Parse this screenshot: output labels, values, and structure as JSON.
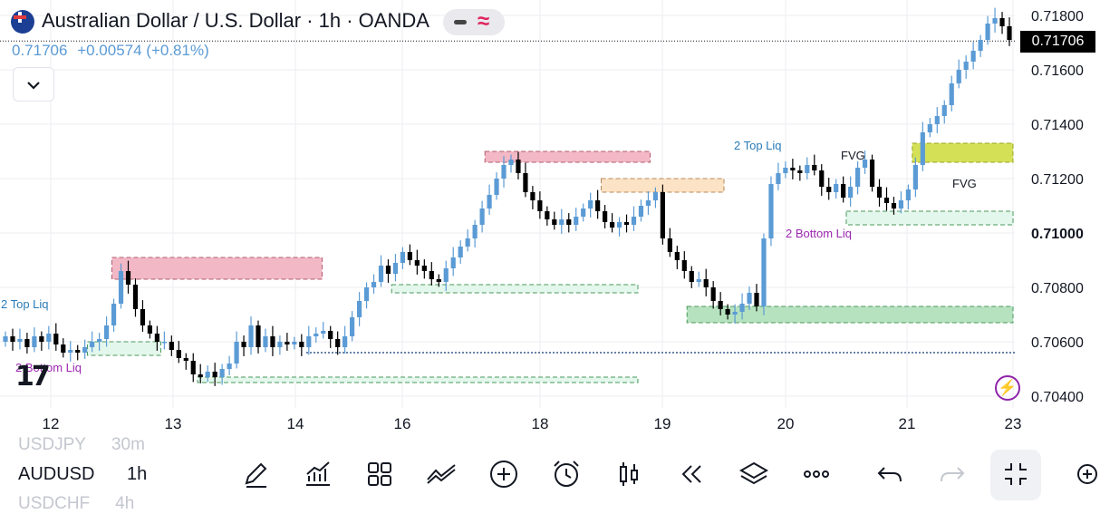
{
  "header": {
    "title": "Australian Dollar / U.S. Dollar · 1h · OANDA",
    "last_price": "0.71706",
    "change": "+0.00574 (+0.81%)"
  },
  "symbols": {
    "above": {
      "name": "USDJPY",
      "tf": "30m"
    },
    "current": {
      "name": "AUDUSD",
      "tf": "1h"
    },
    "below": {
      "name": "USDCHF",
      "tf": "4h"
    }
  },
  "colors": {
    "up": "#5b9bd5",
    "down": "#000000",
    "red_zone": "#f2b8c6",
    "orange_zone": "#fde3c5",
    "green_zone": "#b6e2bf",
    "light_green_zone": "#e4f7ec",
    "lime_zone": "#d4e157",
    "liq_label_blue": "#2b7cb8",
    "liq_label_purple": "#9c27b0"
  },
  "toolbar_icons": [
    "pencil-icon",
    "indicators-icon",
    "layouts-icon",
    "drawings-icon",
    "add-icon",
    "alarm-icon",
    "candles-icon",
    "replay-icon",
    "layers-icon",
    "more-icon",
    "undo-icon",
    "redo-icon",
    "collapse-icon",
    "compare-icon"
  ],
  "chart_data": {
    "type": "candlestick",
    "symbol": "AUDUSD",
    "interval": "1h",
    "ylim": [
      0.7035,
      0.7185
    ],
    "y_ticks": [
      "0.71800",
      "0.71600",
      "0.71400",
      "0.71200",
      "0.71000",
      "0.70800",
      "0.70600",
      "0.70400"
    ],
    "x_ticks": [
      "12",
      "13",
      "14",
      "16",
      "18",
      "19",
      "20",
      "21",
      "23"
    ],
    "last_value": 0.71706,
    "annotations": {
      "top_liq_left": "2 Top Liq",
      "bottom_liq_left": "2 Bottom Liq",
      "top_liq_mid": "2 Top Liq",
      "bottom_liq_right": "2 Bottom Liq",
      "fvg_1": "FVG",
      "fvg_2": "FVG"
    },
    "zones": [
      {
        "kind": "red",
        "from": "12.5",
        "to": "14.5",
        "low": 0.7083,
        "high": 0.7091
      },
      {
        "kind": "red",
        "from": "17.2",
        "to": "18.9",
        "low": 0.7126,
        "high": 0.713
      },
      {
        "kind": "orange",
        "from": "18.5",
        "to": "19.5",
        "low": 0.7115,
        "high": 0.712
      },
      {
        "kind": "green",
        "from": "19.2",
        "to": "23",
        "low": 0.7067,
        "high": 0.7073
      },
      {
        "kind": "lime",
        "from": "21.1",
        "to": "23",
        "low": 0.7126,
        "high": 0.7133
      },
      {
        "kind": "light_green",
        "from": "20.5",
        "to": "23",
        "low": 0.7103,
        "high": 0.7108
      },
      {
        "kind": "light_green",
        "from": "12.3",
        "to": "12.9",
        "low": 0.7055,
        "high": 0.706
      },
      {
        "kind": "light_green",
        "from": "13.2",
        "to": "18.8",
        "low": 0.7045,
        "high": 0.7047
      },
      {
        "kind": "light_green",
        "from": "15.8",
        "to": "18.8",
        "low": 0.7078,
        "high": 0.7081
      }
    ],
    "close_path": [
      0.7062,
      0.706,
      0.7061,
      0.7058,
      0.7062,
      0.706,
      0.7063,
      0.7059,
      0.7056,
      0.7057,
      0.7056,
      0.7058,
      0.706,
      0.7061,
      0.7066,
      0.7074,
      0.7086,
      0.7081,
      0.7072,
      0.7066,
      0.7063,
      0.706,
      0.706,
      0.7057,
      0.7054,
      0.7053,
      0.7048,
      0.7047,
      0.7049,
      0.7047,
      0.705,
      0.7052,
      0.706,
      0.7058,
      0.7066,
      0.7058,
      0.7062,
      0.7058,
      0.706,
      0.7059,
      0.706,
      0.7058,
      0.7062,
      0.7063,
      0.7064,
      0.7061,
      0.7058,
      0.7062,
      0.7069,
      0.7075,
      0.708,
      0.7082,
      0.7088,
      0.7085,
      0.7089,
      0.7093,
      0.709,
      0.7088,
      0.7086,
      0.7083,
      0.7082,
      0.7087,
      0.7091,
      0.7095,
      0.7098,
      0.7103,
      0.7109,
      0.7114,
      0.712,
      0.7125,
      0.7127,
      0.7122,
      0.7115,
      0.7112,
      0.7108,
      0.7105,
      0.7103,
      0.7105,
      0.7103,
      0.7106,
      0.7109,
      0.7112,
      0.7108,
      0.7104,
      0.7102,
      0.7104,
      0.7103,
      0.7106,
      0.711,
      0.7112,
      0.7115,
      0.7098,
      0.7093,
      0.709,
      0.7086,
      0.7082,
      0.7083,
      0.708,
      0.7075,
      0.7072,
      0.707,
      0.7071,
      0.7074,
      0.7078,
      0.7073,
      0.7098,
      0.7118,
      0.7122,
      0.7124,
      0.7123,
      0.7122,
      0.7125,
      0.7123,
      0.7117,
      0.7115,
      0.7118,
      0.7113,
      0.7117,
      0.7124,
      0.7127,
      0.7117,
      0.7113,
      0.7111,
      0.7109,
      0.7112,
      0.7116,
      0.7125,
      0.7137,
      0.714,
      0.7143,
      0.7147,
      0.7155,
      0.716,
      0.7163,
      0.7167,
      0.7171,
      0.7177,
      0.7179,
      0.7176,
      0.7171
    ]
  }
}
